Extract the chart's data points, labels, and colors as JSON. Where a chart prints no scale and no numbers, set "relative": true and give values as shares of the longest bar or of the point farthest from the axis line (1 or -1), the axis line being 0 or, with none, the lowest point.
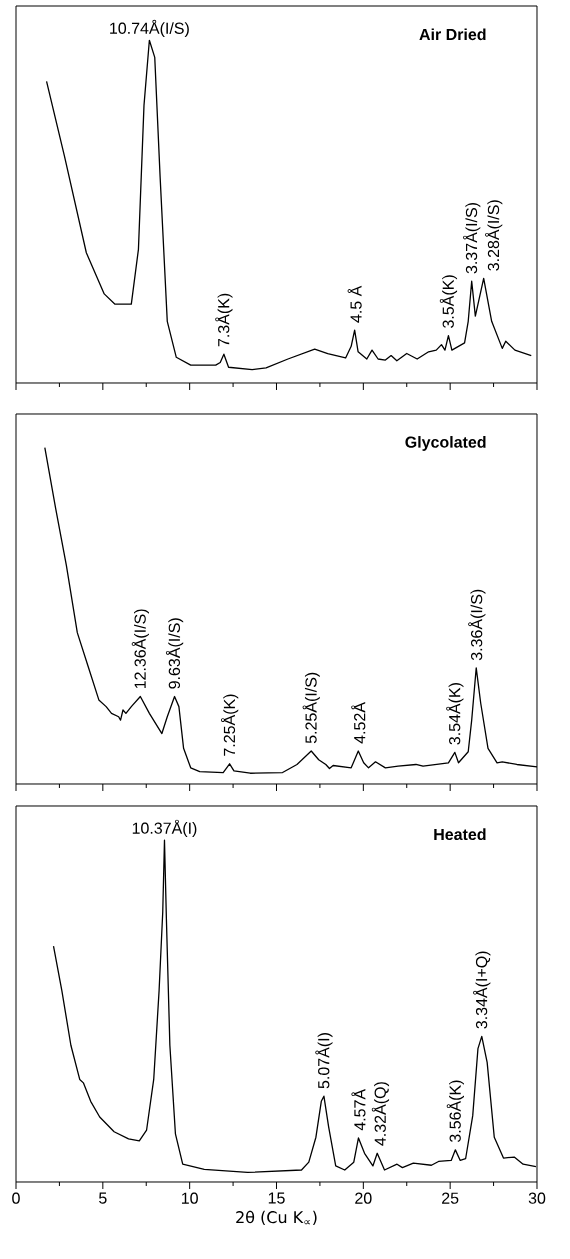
{
  "chart_data": [
    {
      "type": "line",
      "title": "Air Dried",
      "relative": true,
      "xlim": [
        0,
        30
      ],
      "xticks": [
        0,
        {
          "value": 2.5,
          "label": null
        },
        5,
        {
          "value": 7.5,
          "label": null
        },
        10,
        {
          "value": 12.5,
          "label": null
        },
        15,
        {
          "value": 17.5,
          "label": null
        },
        20,
        {
          "value": 22.5,
          "label": null
        },
        25,
        {
          "value": 27.5,
          "label": null
        },
        30
      ],
      "tick_labels": false,
      "series": [
        {
          "color": "#000000",
          "x": [
            1.76,
            2.8,
            4.05,
            5.08,
            5.7,
            6.64,
            7.05,
            7.37,
            7.68,
            7.99,
            8.3,
            8.71,
            9.23,
            10.06,
            11.5,
            11.76,
            11.97,
            12.24,
            13.6,
            14.4,
            15.66,
            17.2,
            17.95,
            18.98,
            19.3,
            19.5,
            19.7,
            20.2,
            20.5,
            20.85,
            21.27,
            21.6,
            21.93,
            22.5,
            23.1,
            23.76,
            24.2,
            24.5,
            24.7,
            24.9,
            25.1,
            25.83,
            26.04,
            26.24,
            26.45,
            26.93,
            27.39,
            28.0,
            28.2,
            28.73,
            29.67
          ],
          "values": [
            0.88,
            0.66,
            0.38,
            0.26,
            0.23,
            0.23,
            0.39,
            0.81,
            1.0,
            0.95,
            0.6,
            0.18,
            0.075,
            0.052,
            0.052,
            0.06,
            0.084,
            0.046,
            0.039,
            0.044,
            0.07,
            0.099,
            0.086,
            0.073,
            0.107,
            0.154,
            0.091,
            0.07,
            0.096,
            0.07,
            0.067,
            0.08,
            0.065,
            0.086,
            0.07,
            0.091,
            0.096,
            0.112,
            0.096,
            0.138,
            0.096,
            0.117,
            0.18,
            0.297,
            0.195,
            0.305,
            0.18,
            0.101,
            0.122,
            0.096,
            0.08
          ]
        }
      ],
      "annotations": [
        {
          "text": "10.74Å(I/S)",
          "x": 7.68,
          "y": 1.0
        },
        {
          "text": "7.3Å(K)",
          "x": 11.97,
          "y": 0.084
        },
        {
          "text": "4.5 Å",
          "x": 19.5,
          "y": 0.154
        },
        {
          "text": "3.5Å(K)",
          "x": 24.9,
          "y": 0.138
        },
        {
          "text": "3.37Å(I/S)",
          "x": 26.24,
          "y": 0.297
        },
        {
          "text": "3.28Å(I/S)",
          "x": 26.93,
          "y": 0.305
        }
      ]
    },
    {
      "type": "line",
      "title": "Glycolated",
      "relative": true,
      "xlim": [
        0,
        30
      ],
      "xticks": [
        0,
        {
          "value": 2.5,
          "label": null
        },
        5,
        {
          "value": 7.5,
          "label": null
        },
        10,
        {
          "value": 12.5,
          "label": null
        },
        15,
        {
          "value": 17.5,
          "label": null
        },
        20,
        {
          "value": 22.5,
          "label": null
        },
        25,
        {
          "value": 27.5,
          "label": null
        },
        30
      ],
      "tick_labels": false,
      "series": [
        {
          "color": "#000000",
          "x": [
            1.66,
            2.28,
            2.9,
            3.53,
            4.15,
            4.77,
            5.19,
            5.5,
            5.91,
            6.02,
            6.16,
            6.33,
            6.64,
            7.16,
            7.68,
            8.4,
            8.71,
            9.13,
            9.38,
            9.65,
            10.06,
            10.58,
            11.93,
            12.3,
            12.55,
            13.49,
            15.35,
            16.18,
            17.0,
            17.43,
            17.84,
            18.05,
            18.26,
            19.3,
            19.71,
            20.02,
            20.3,
            20.7,
            21.27,
            22.0,
            23.03,
            23.44,
            24.9,
            25.27,
            25.48,
            26.04,
            26.24,
            26.5,
            26.76,
            27.18,
            27.7,
            28.0,
            28.84,
            30.0
          ],
          "values": [
            1.0,
            0.82,
            0.65,
            0.45,
            0.35,
            0.25,
            0.23,
            0.21,
            0.2,
            0.19,
            0.22,
            0.21,
            0.23,
            0.26,
            0.21,
            0.15,
            0.2,
            0.26,
            0.23,
            0.106,
            0.048,
            0.037,
            0.034,
            0.06,
            0.039,
            0.032,
            0.034,
            0.058,
            0.098,
            0.072,
            0.058,
            0.046,
            0.055,
            0.048,
            0.098,
            0.063,
            0.048,
            0.066,
            0.048,
            0.053,
            0.058,
            0.053,
            0.063,
            0.094,
            0.063,
            0.096,
            0.19,
            0.345,
            0.24,
            0.106,
            0.063,
            0.066,
            0.058,
            0.051
          ]
        }
      ],
      "annotations": [
        {
          "text": "12.36Å(I/S)",
          "x": 7.16,
          "y": 0.26
        },
        {
          "text": "9.63Å(I/S)",
          "x": 9.13,
          "y": 0.26
        },
        {
          "text": "7.25Å(K)",
          "x": 12.3,
          "y": 0.06
        },
        {
          "text": "5.25Å(I/S)",
          "x": 17.0,
          "y": 0.098
        },
        {
          "text": "4.52Å",
          "x": 19.71,
          "y": 0.098
        },
        {
          "text": "3.54Å(K)",
          "x": 25.27,
          "y": 0.094
        },
        {
          "text": "3.36Å(I/S)",
          "x": 26.5,
          "y": 0.345
        }
      ]
    },
    {
      "type": "line",
      "title": "Heated",
      "relative": true,
      "xlabel": "2θ (Cu K$_{∝}$)",
      "xlim": [
        0,
        30
      ],
      "xticks": [
        0,
        {
          "value": 2.5,
          "label": null
        },
        5,
        {
          "value": 7.5,
          "label": null
        },
        10,
        {
          "value": 12.5,
          "label": null
        },
        15,
        {
          "value": 17.5,
          "label": null
        },
        20,
        {
          "value": 22.5,
          "label": null
        },
        25,
        {
          "value": 27.5,
          "label": null
        },
        30
      ],
      "tick_labels": "x",
      "series": [
        {
          "color": "#000000",
          "x": [
            2.16,
            2.64,
            3.16,
            3.67,
            3.88,
            4.3,
            4.82,
            5.65,
            6.48,
            7.1,
            7.52,
            7.93,
            8.24,
            8.45,
            8.55,
            8.66,
            8.86,
            9.18,
            9.6,
            10.84,
            13.33,
            16.44,
            16.86,
            17.27,
            17.58,
            17.73,
            18.0,
            18.41,
            18.93,
            19.45,
            19.72,
            20.07,
            20.55,
            20.8,
            21.22,
            21.94,
            22.25,
            22.88,
            23.92,
            24.33,
            25.06,
            25.3,
            25.58,
            25.89,
            26.3,
            26.6,
            26.82,
            27.13,
            27.54,
            28.07,
            28.69,
            29.2,
            29.94
          ],
          "values": [
            0.69,
            0.56,
            0.4,
            0.3,
            0.29,
            0.236,
            0.19,
            0.147,
            0.126,
            0.12,
            0.152,
            0.3,
            0.56,
            0.79,
            1.0,
            0.77,
            0.4,
            0.141,
            0.052,
            0.037,
            0.028,
            0.035,
            0.058,
            0.131,
            0.236,
            0.251,
            0.162,
            0.047,
            0.035,
            0.058,
            0.129,
            0.084,
            0.047,
            0.084,
            0.035,
            0.052,
            0.042,
            0.055,
            0.049,
            0.06,
            0.063,
            0.094,
            0.063,
            0.068,
            0.194,
            0.39,
            0.426,
            0.35,
            0.131,
            0.07,
            0.073,
            0.052,
            0.045
          ]
        }
      ],
      "annotations": [
        {
          "text": "10.37Å(I)",
          "x": 8.55,
          "y": 1.0
        },
        {
          "text": "5.07Å(I)",
          "x": 17.73,
          "y": 0.251
        },
        {
          "text": "4.57Å",
          "x": 19.72,
          "y": 0.129
        },
        {
          "text": "4.32Å(Q)",
          "x": 20.8,
          "y": 0.084
        },
        {
          "text": "3.56Å(K)",
          "x": 25.3,
          "y": 0.094
        },
        {
          "text": "3.34Å(I+Q)",
          "x": 26.82,
          "y": 0.426
        }
      ]
    }
  ]
}
